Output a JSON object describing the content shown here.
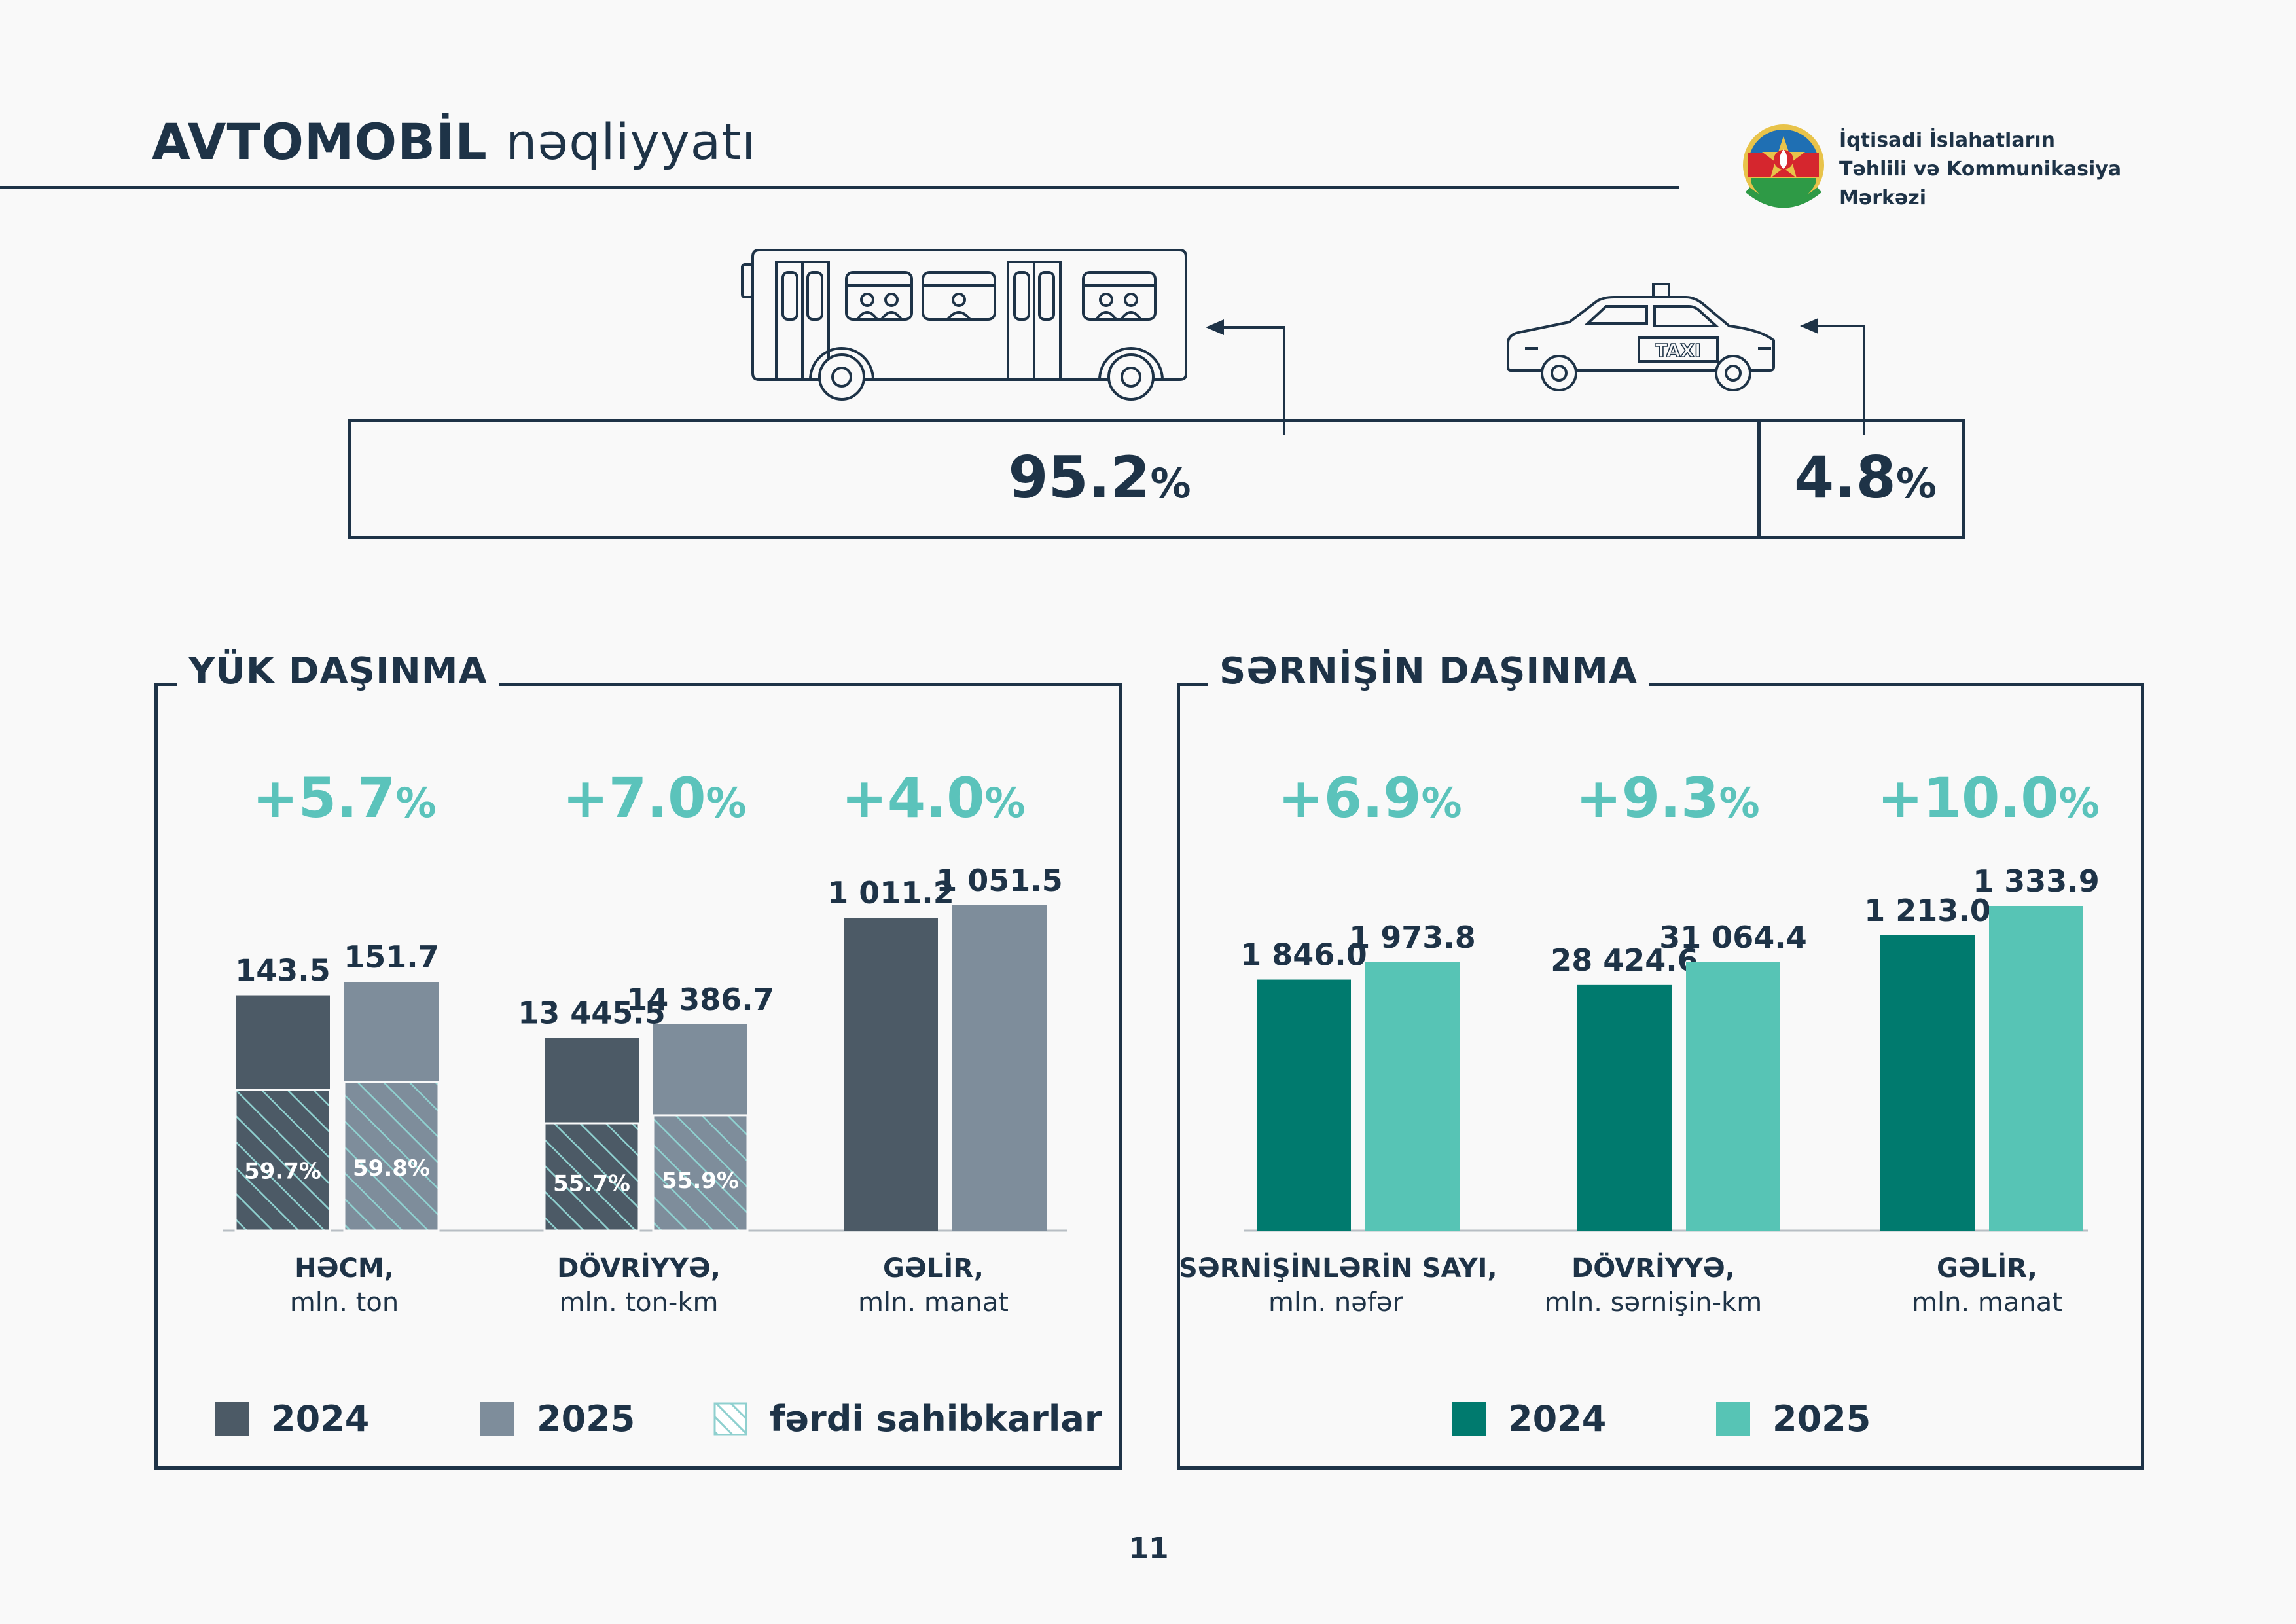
{
  "header": {
    "title_bold": "AVTOMOBİL",
    "title_light": "nəqliyyatı",
    "org_line1": "İqtisadi İslahatların",
    "org_line2": "Təhlili və Kommunikasiya",
    "org_line3": "Mərkəzi"
  },
  "share": {
    "bus_value": "95.2",
    "taxi_value": "4.8",
    "unit": "%",
    "bus_icon": "bus-icon",
    "taxi_icon": "taxi-icon",
    "taxi_sign": "TAXI"
  },
  "colors": {
    "navy": "#1e3347",
    "dark_gray": "#4c5a66",
    "light_gray": "#7e8d9b",
    "dark_teal": "#007a6e",
    "light_teal": "#57c4b5",
    "growth": "#5bc3bb",
    "hatch": "#8fd0cf"
  },
  "cargo": {
    "title": "YÜK DAŞINMA",
    "growth": [
      "+5.7",
      "+7.0",
      "+4.0"
    ],
    "growth_unit": "%",
    "legend": {
      "y2024": "2024",
      "y2025": "2025",
      "individual": "fərdi sahibkarlar"
    },
    "categories": [
      {
        "name": "HƏCM,",
        "unit": "mln. ton"
      },
      {
        "name": "DÖVRİYYƏ,",
        "unit": "mln. ton-km"
      },
      {
        "name": "GƏLİR,",
        "unit": "mln. manat"
      }
    ]
  },
  "passenger": {
    "title": "SƏRNİŞİN DAŞINMA",
    "growth": [
      "+6.9",
      "+9.3",
      "+10.0"
    ],
    "growth_unit": "%",
    "legend": {
      "y2024": "2024",
      "y2025": "2025"
    },
    "categories": [
      {
        "name": "SƏRNİŞİNLƏRİN SAYI,",
        "unit": "mln. nəfər"
      },
      {
        "name": "DÖVRİYYƏ,",
        "unit": "mln. sərnişin-km"
      },
      {
        "name": "GƏLİR,",
        "unit": "mln. manat"
      }
    ]
  },
  "chart_data": [
    {
      "type": "bar",
      "title": "YÜK DAŞINMA",
      "categories": [
        "HƏCM, mln. ton",
        "DÖVRİYYƏ, mln. ton-km",
        "GƏLİR, mln. manat"
      ],
      "series": [
        {
          "name": "2024",
          "values": [
            143.5,
            13445.5,
            1011.2
          ],
          "labels": [
            "143.5",
            "13 445.5",
            "1 011.2"
          ]
        },
        {
          "name": "2025",
          "values": [
            151.7,
            14386.7,
            1051.5
          ],
          "labels": [
            "151.7",
            "14 386.7",
            "1 051.5"
          ]
        }
      ],
      "individual_entrepreneurs_share": {
        "name": "fərdi sahibkarlar",
        "2024": [
          59.7,
          55.7,
          null
        ],
        "2025": [
          59.8,
          55.9,
          null
        ],
        "labels_2024": [
          "59.7%",
          "55.7%",
          ""
        ],
        "labels_2025": [
          "59.8%",
          "55.9%",
          ""
        ]
      },
      "growth_percent": [
        5.7,
        7.0,
        4.0
      ],
      "legend_position": "bottom"
    },
    {
      "type": "bar",
      "title": "SƏRNİŞİN DAŞINMA",
      "categories": [
        "SƏRNİŞİNLƏRİN SAYI, mln. nəfər",
        "DÖVRİYYƏ, mln. sərnişin-km",
        "GƏLİR, mln. manat"
      ],
      "series": [
        {
          "name": "2024",
          "values": [
            1846.0,
            28424.6,
            1213.0
          ],
          "labels": [
            "1 846.0",
            "28 424.6",
            "1 213.0"
          ]
        },
        {
          "name": "2025",
          "values": [
            1973.8,
            31064.4,
            1333.9
          ],
          "labels": [
            "1 973.8",
            "31 064.4",
            "1 333.9"
          ]
        }
      ],
      "growth_percent": [
        6.9,
        9.3,
        10.0
      ],
      "legend_position": "bottom"
    }
  ],
  "page_number": "11"
}
